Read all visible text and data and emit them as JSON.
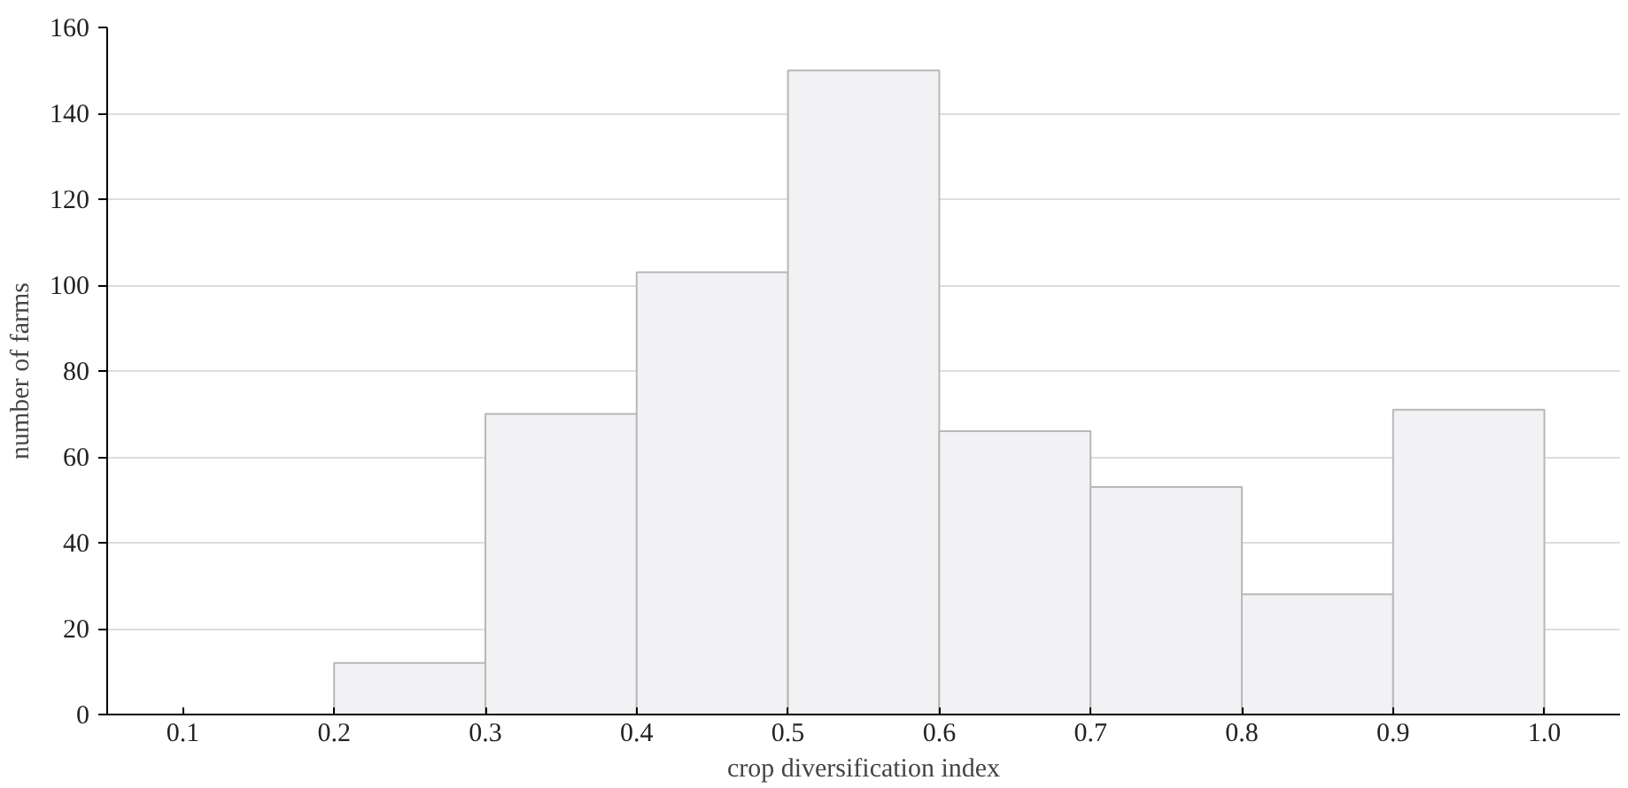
{
  "chart_data": {
    "type": "histogram",
    "xlabel": "crop diversification index",
    "ylabel": "number of farms",
    "bins": [
      0.1,
      0.2,
      0.3,
      0.4,
      0.5,
      0.6,
      0.7,
      0.8,
      0.9,
      1.0
    ],
    "values": [
      0,
      12,
      70,
      103,
      150,
      66,
      53,
      28,
      71
    ],
    "color": "#f2f2f4",
    "xlim": [
      0.05,
      1.05
    ],
    "xticks": [
      0.1,
      0.2,
      0.3,
      0.4,
      0.5,
      0.6,
      0.7,
      0.8,
      0.9,
      {
        "value": 1.0,
        "label": "1.0"
      }
    ],
    "ylim": [
      0,
      160
    ],
    "yticks": [
      0,
      20,
      40,
      60,
      80,
      100,
      120,
      140,
      160
    ],
    "grid": "y"
  }
}
